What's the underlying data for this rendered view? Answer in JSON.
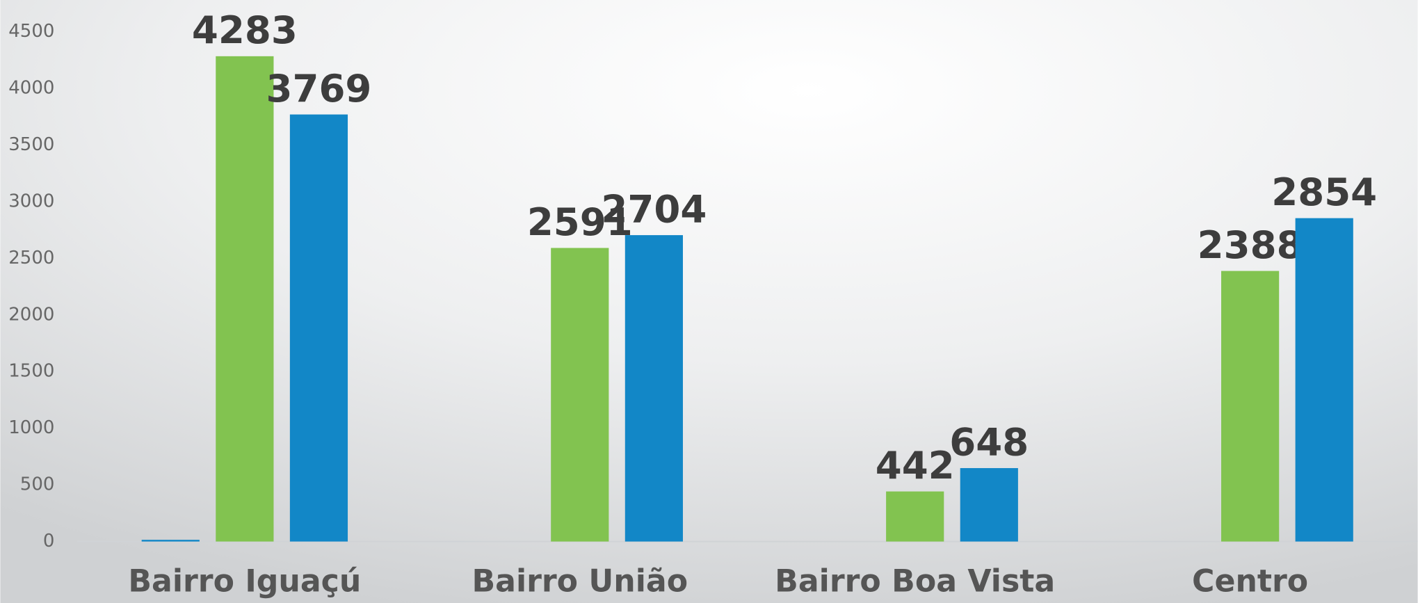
{
  "chart_data": {
    "type": "bar",
    "categories": [
      "Bairro Iguaçú",
      "Bairro União",
      "Bairro Boa Vista",
      "Centro"
    ],
    "series": [
      {
        "color": "#1287c7",
        "values": [
          15,
          null,
          null,
          null
        ]
      },
      {
        "color": "#82c350",
        "values": [
          4283,
          2591,
          442,
          2388
        ]
      },
      {
        "color": "#1287c7",
        "values": [
          3769,
          2704,
          648,
          2854
        ]
      }
    ],
    "ylim": [
      0,
      4500
    ],
    "yticks": [
      0,
      500,
      1000,
      1500,
      2000,
      2500,
      3000,
      3500,
      4000,
      4500
    ],
    "grid": false
  }
}
